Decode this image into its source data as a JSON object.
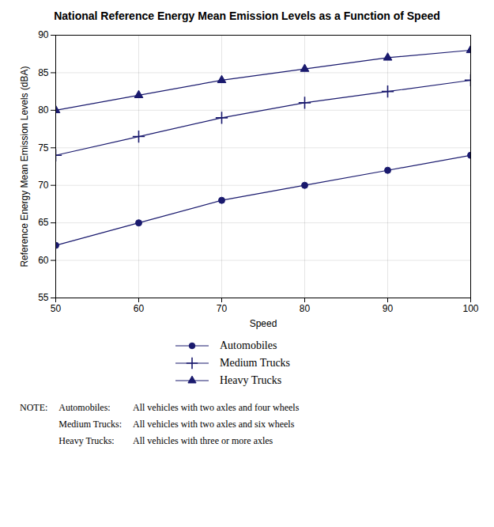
{
  "chart_data": {
    "type": "line",
    "title": "National Reference Energy Mean Emission Levels as a Function of Speed",
    "xlabel": "Speed",
    "ylabel": "Reference Energy Mean Emission Levels (dBA)",
    "x": [
      50,
      60,
      70,
      80,
      90,
      100
    ],
    "series": [
      {
        "name": "Automobiles",
        "color": "#1a1a6e",
        "marker": "circle",
        "values": [
          62,
          65,
          68,
          70,
          72,
          74
        ]
      },
      {
        "name": "Medium Trucks",
        "color": "#1a1a6e",
        "marker": "plus",
        "values": [
          74,
          76.5,
          79,
          81,
          82.5,
          84
        ]
      },
      {
        "name": "Heavy Trucks",
        "color": "#1a1a6e",
        "marker": "triangle",
        "values": [
          80,
          82,
          84,
          85.5,
          87,
          88
        ]
      }
    ],
    "xlim": [
      50,
      100
    ],
    "ylim": [
      55,
      90
    ],
    "xticks": [
      50,
      60,
      70,
      80,
      90,
      100
    ],
    "yticks": [
      55,
      60,
      65,
      70,
      75,
      80,
      85,
      90
    ],
    "grid": true,
    "legend": "bottom",
    "annotations": {
      "label": "NOTE:",
      "items": [
        [
          "Automobiles:",
          "All vehicles with two axles and four wheels"
        ],
        [
          "Medium Trucks:",
          "All vehicles with two axles and six wheels"
        ],
        [
          "Heavy Trucks:",
          "All vehicles with three or more axles"
        ]
      ]
    }
  }
}
